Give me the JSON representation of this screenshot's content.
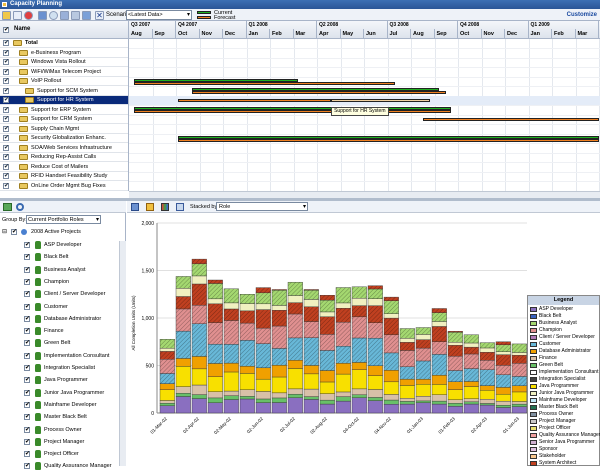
{
  "window": {
    "title": "Capacity Planning",
    "customize": "Customize"
  },
  "toolbar": {
    "scenario_label": "Scenario",
    "scenario_value": "<Latest Data>",
    "legend_current": "Current",
    "legend_forecast": "Forecast"
  },
  "timeline": {
    "quarters": [
      "Q3 2007",
      "Q4 2007",
      "Q1 2008",
      "Q2 2008",
      "Q3 2008",
      "Q4 2008",
      "Q1 2009"
    ],
    "months": [
      "Aug",
      "Sep",
      "Oct",
      "Nov",
      "Dec",
      "Jan",
      "Feb",
      "Mar",
      "Apr",
      "May",
      "Jun",
      "Jul",
      "Aug",
      "Sep",
      "Oct",
      "Nov",
      "Dec",
      "Jan",
      "Feb",
      "Mar"
    ]
  },
  "projects": {
    "name_header": "Name",
    "rows": [
      {
        "name": "Total",
        "bold": true,
        "indent": 0
      },
      {
        "name": "e-Business Program",
        "indent": 1
      },
      {
        "name": "Windows Vista Rollout",
        "indent": 1
      },
      {
        "name": "WiFi/WiMax Telecom Project",
        "indent": 1
      },
      {
        "name": "VoIP Rollout",
        "indent": 1
      },
      {
        "name": "Support for SCM System",
        "indent": 2
      },
      {
        "name": "Support for HR System",
        "indent": 2,
        "selected": true
      },
      {
        "name": "Support for ERP System",
        "indent": 1
      },
      {
        "name": "Support for CRM System",
        "indent": 1
      },
      {
        "name": "Supply Chain Mgmt",
        "indent": 1
      },
      {
        "name": "Security Globalization Enhanc.",
        "indent": 1
      },
      {
        "name": "SOA/Web Services Infrastructure",
        "indent": 1
      },
      {
        "name": "Reducing Rep-Assist Calls",
        "indent": 1
      },
      {
        "name": "Reduce Cost of Mailers",
        "indent": 1
      },
      {
        "name": "RFID Handset Feasibility Study",
        "indent": 1
      },
      {
        "name": "OnLine Order Mgmt Bug Fixes",
        "indent": 1
      }
    ],
    "tooltip": "Support for HR System"
  },
  "grouping": {
    "label": "Group By:",
    "value": "Current Portfolio Roles",
    "stacked_label": "Stacked by:",
    "stacked_value": "Role"
  },
  "roles": {
    "root": "2008 Active Projects",
    "items": [
      "ASP Developer",
      "Black Belt",
      "Business Analyst",
      "Champion",
      "Client / Server Developer",
      "Customer",
      "Database Administrator",
      "Finance",
      "Green Belt",
      "Implementation Consultant",
      "Integration Specialist",
      "Java Programmer",
      "Junior Java Programmer",
      "Mainframe Developer",
      "Master Black Belt",
      "Process Owner",
      "Project Manager",
      "Project Officer",
      "Quality Assurance Manager"
    ]
  },
  "chart_data": {
    "type": "bar",
    "ylabel": "All Completion Units (Units)",
    "ylim": [
      0,
      2000
    ],
    "yticks": [
      "0",
      "500",
      "1,000",
      "1,500",
      "2,000"
    ],
    "categories": [
      "01-Mar-02",
      "",
      "02-Apr-02",
      "",
      "02-May-02",
      "",
      "02-Jun-02",
      "",
      "02-Jul-02",
      "",
      "02-Aug-02",
      "",
      "04-Oct-02",
      "",
      "04-Nov-02",
      "",
      "01-Jan-03",
      "",
      "01-Feb-03",
      "",
      "02-Apr-03",
      "",
      "01-Jun-03"
    ],
    "totals": [
      760,
      1390,
      1620,
      1400,
      1260,
      1230,
      1320,
      1300,
      1320,
      1300,
      1240,
      1300,
      1280,
      1340,
      1220,
      860,
      880,
      1100,
      860,
      790,
      740,
      750,
      720
    ],
    "legend_title": "Legend",
    "series": [
      {
        "name": "ASP Developer",
        "color": "#8a6fc0"
      },
      {
        "name": "Black Belt",
        "color": "#3a63c0"
      },
      {
        "name": "Business Analyst",
        "color": "#a4d870"
      },
      {
        "name": "Champion",
        "color": "#e09090"
      },
      {
        "name": "Client / Server Developer",
        "color": "#b07ab8"
      },
      {
        "name": "Customer",
        "color": "#68b8d8"
      },
      {
        "name": "Database Administrator",
        "color": "#f0a000"
      },
      {
        "name": "Finance",
        "color": "#d8c0a8"
      },
      {
        "name": "Green Belt",
        "color": "#68c068"
      },
      {
        "name": "Implementation Consultant",
        "color": "#ffffff"
      },
      {
        "name": "Integration Specialist",
        "color": "#404040"
      },
      {
        "name": "Java Programmer",
        "color": "#f8e000"
      },
      {
        "name": "Junior Java Programmer",
        "color": "#f0f0c0"
      },
      {
        "name": "Mainframe Developer",
        "color": "#c0e8f8"
      },
      {
        "name": "Master Black Belt",
        "color": "#207050"
      },
      {
        "name": "Process Owner",
        "color": "#8090a0"
      },
      {
        "name": "Project Manager",
        "color": "#c8c8c8"
      },
      {
        "name": "Project Officer",
        "color": "#e8e070"
      },
      {
        "name": "Quality Assurance Manager",
        "color": "#f0a0a0"
      },
      {
        "name": "Senior Java Programmer",
        "color": "#d0b0d0"
      },
      {
        "name": "Sponsor",
        "color": "#e0c0e0"
      },
      {
        "name": "Stakeholder",
        "color": "#f8c890"
      },
      {
        "name": "System Architect",
        "color": "#c04020"
      }
    ]
  }
}
